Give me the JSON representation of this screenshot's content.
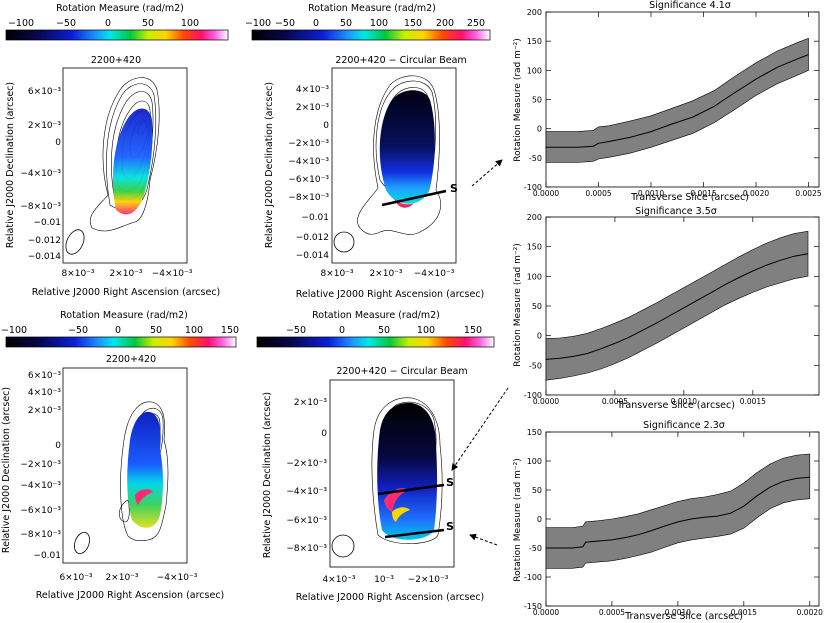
{
  "chart_data": [
    {
      "id": "map_tl",
      "type": "heatmap",
      "title": "2200+420",
      "colorbar": {
        "label": "Rotation Measure (rad/m2)",
        "ticks": [
          "−100",
          "−50",
          "0",
          "50",
          "100"
        ],
        "range": [
          -100,
          130
        ]
      },
      "xlabel": "Relative J2000 Right Ascension (arcsec)",
      "ylabel": "Relative J2000 Declination (arcsec)",
      "xticks": [
        "8×10⁻³",
        "2×10⁻³",
        "−4×10⁻³"
      ],
      "yticks": [
        "6×10⁻³",
        "2×10⁻³",
        "0",
        "−4×10⁻³",
        "−8×10⁻³",
        "−0.01",
        "−0.012",
        "−0.014"
      ]
    },
    {
      "id": "map_tr",
      "type": "heatmap",
      "title": "2200+420 − Circular Beam",
      "colorbar": {
        "label": "Rotation Measure (rad/m2)",
        "ticks": [
          "−100",
          "−50",
          "0",
          "50",
          "100",
          "150",
          "200",
          "250"
        ],
        "range": [
          -100,
          270
        ]
      },
      "xlabel": "Relative J2000 Right Ascension (arcsec)",
      "ylabel": "Relative J2000 Declination (arcsec)",
      "xticks": [
        "8×10⁻³",
        "2×10⁻³",
        "−4×10⁻³"
      ],
      "yticks": [
        "4×10⁻³",
        "2×10⁻³",
        "0",
        "−2×10⁻³",
        "−4×10⁻³",
        "−6×10⁻³",
        "−8×10⁻³",
        "−0.01",
        "−0.012",
        "−0.014"
      ],
      "slice_labels": [
        "S"
      ]
    },
    {
      "id": "map_bl",
      "type": "heatmap",
      "title": "2200+420",
      "colorbar": {
        "label": "Rotation Measure (rad/m2)",
        "ticks": [
          "−100",
          "−50",
          "0",
          "50",
          "100",
          "150"
        ],
        "range": [
          -125,
          150
        ]
      },
      "xlabel": "Relative J2000 Right Ascension (arcsec)",
      "ylabel": "Relative J2000 Declination (arcsec)",
      "xticks": [
        "6×10⁻³",
        "2×10⁻³",
        "−4×10⁻³"
      ],
      "yticks": [
        "6×10⁻³",
        "4×10⁻³",
        "2×10⁻³",
        "0",
        "−2×10⁻³",
        "−4×10⁻³",
        "−6×10⁻³",
        "−8×10⁻³",
        "−0.01"
      ]
    },
    {
      "id": "map_br",
      "type": "heatmap",
      "title": "2200+420 − Circular Beam",
      "colorbar": {
        "label": "Rotation Measure (rad/m2)",
        "ticks": [
          "−50",
          "0",
          "50",
          "100",
          "150"
        ],
        "range": [
          -80,
          160
        ]
      },
      "xlabel": "Relative J2000 Right Ascension (arcsec)",
      "ylabel": "Relative J2000 Declination (arcsec)",
      "xticks": [
        "4×10⁻³",
        "10⁻³",
        "−2×10⁻³"
      ],
      "yticks": [
        "2×10⁻³",
        "0",
        "−2×10⁻³",
        "−4×10⁻³",
        "−6×10⁻³",
        "−8×10⁻³"
      ],
      "slice_labels": [
        "S",
        "S"
      ]
    },
    {
      "id": "prof_1",
      "type": "line",
      "title": "Significance  4.1σ",
      "xlabel": "Transverse Slice (arcsec)",
      "ylabel": "Rotation Measure (rad m⁻²)",
      "xlim": [
        0,
        0.0026
      ],
      "ylim": [
        -100,
        200
      ],
      "xticks": [
        0,
        0.0005,
        0.001,
        0.0015,
        0.002,
        0.0025
      ],
      "xtick_labels": [
        "0.0000",
        "0.0005",
        "0.0010",
        "0.0015",
        "0.0020",
        "0.0025"
      ],
      "yticks": [
        -100,
        -50,
        0,
        50,
        100,
        150,
        200
      ],
      "x": [
        0,
        0.00015,
        0.0003,
        0.00045,
        0.0005,
        0.0006,
        0.0008,
        0.001,
        0.0012,
        0.0014,
        0.0016,
        0.0018,
        0.002,
        0.0022,
        0.0024,
        0.0025
      ],
      "y": [
        -32,
        -32,
        -32,
        -30,
        -25,
        -22,
        -15,
        -5,
        8,
        20,
        38,
        62,
        85,
        105,
        120,
        127
      ],
      "upper": [
        -5,
        -5,
        -5,
        -3,
        3,
        5,
        13,
        22,
        35,
        48,
        65,
        90,
        113,
        133,
        148,
        155
      ],
      "lower": [
        -58,
        -58,
        -58,
        -56,
        -52,
        -49,
        -42,
        -32,
        -20,
        -8,
        10,
        33,
        57,
        77,
        92,
        100
      ]
    },
    {
      "id": "prof_2",
      "type": "line",
      "title": "Significance  3.5σ",
      "xlabel": "Transverse Slice (arcsec)",
      "ylabel": "Rotation Measure (rad m⁻²)",
      "xlim": [
        0,
        0.00198
      ],
      "ylim": [
        -100,
        200
      ],
      "xticks": [
        0,
        0.0005,
        0.001,
        0.0015
      ],
      "xtick_labels": [
        "0.0000",
        "0.0005",
        "0.0010",
        "0.0015"
      ],
      "yticks": [
        -100,
        -50,
        0,
        50,
        100,
        150,
        200
      ],
      "x": [
        0,
        0.0001,
        0.0002,
        0.0003,
        0.0004,
        0.0005,
        0.0006,
        0.0007,
        0.0008,
        0.0009,
        0.001,
        0.0011,
        0.0012,
        0.0013,
        0.0014,
        0.0015,
        0.0016,
        0.0017,
        0.0018,
        0.0019
      ],
      "y": [
        -40,
        -38,
        -35,
        -30,
        -22,
        -13,
        -3,
        9,
        21,
        34,
        47,
        60,
        73,
        86,
        98,
        109,
        119,
        127,
        134,
        138
      ],
      "upper": [
        -5,
        -4,
        -1,
        4,
        12,
        21,
        31,
        43,
        55,
        68,
        81,
        94,
        107,
        120,
        133,
        145,
        156,
        165,
        172,
        176
      ],
      "lower": [
        -75,
        -72,
        -68,
        -63,
        -56,
        -47,
        -37,
        -25,
        -13,
        0,
        13,
        26,
        39,
        52,
        63,
        73,
        82,
        89,
        96,
        100
      ]
    },
    {
      "id": "prof_3",
      "type": "line",
      "title": "Significance  2.3σ",
      "xlabel": "Transverse Slice (arcsec)",
      "ylabel": "Rotation Measure (rad m⁻²)",
      "xlim": [
        0,
        0.00207
      ],
      "ylim": [
        -150,
        150
      ],
      "xticks": [
        0,
        0.0005,
        0.001,
        0.0015,
        0.002
      ],
      "xtick_labels": [
        "0.0000",
        "0.0005",
        "0.0010",
        "0.0015",
        "0.0020"
      ],
      "yticks": [
        -150,
        -100,
        -50,
        0,
        50,
        100,
        150
      ],
      "x": [
        0,
        0.0001,
        0.0002,
        0.00028,
        0.0003,
        0.0004,
        0.0005,
        0.0006,
        0.0007,
        0.0008,
        0.0009,
        0.001,
        0.0011,
        0.0012,
        0.0013,
        0.0014,
        0.0015,
        0.0016,
        0.0017,
        0.0018,
        0.0019,
        0.002
      ],
      "y": [
        -50,
        -50,
        -50,
        -48,
        -40,
        -38,
        -36,
        -32,
        -27,
        -20,
        -12,
        -5,
        0,
        3,
        5,
        10,
        22,
        40,
        55,
        65,
        70,
        72
      ],
      "upper": [
        -15,
        -15,
        -15,
        -12,
        -5,
        -3,
        0,
        4,
        9,
        16,
        23,
        30,
        35,
        38,
        42,
        48,
        62,
        80,
        95,
        105,
        110,
        112
      ],
      "lower": [
        -85,
        -85,
        -85,
        -83,
        -76,
        -74,
        -72,
        -68,
        -63,
        -57,
        -49,
        -41,
        -36,
        -33,
        -30,
        -26,
        -16,
        2,
        18,
        28,
        33,
        35
      ]
    }
  ]
}
